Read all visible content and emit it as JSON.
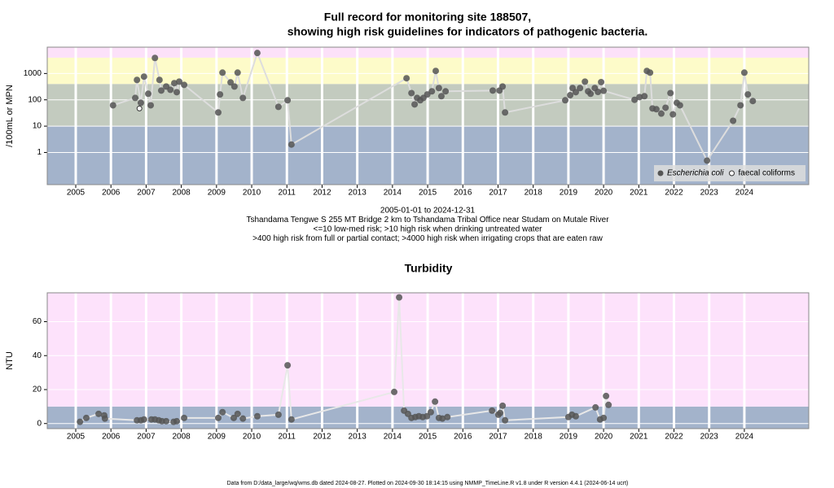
{
  "chart_data": [
    {
      "type": "scatter",
      "title": "Full record for monitoring site 188507,",
      "subtitle": "showing high risk guidelines for indicators of pathogenic bacteria.",
      "y_label": "/100mL or MPN",
      "log_y": true,
      "xlim": [
        2004.19,
        2025.83
      ],
      "xticks": [
        2005,
        2006,
        2007,
        2008,
        2009,
        2010,
        2011,
        2012,
        2013,
        2014,
        2015,
        2016,
        2017,
        2018,
        2019,
        2020,
        2021,
        2022,
        2023,
        2024
      ],
      "ylim": [
        0.06,
        10000
      ],
      "yticks": [
        1,
        10,
        100,
        1000
      ],
      "grid": true,
      "legend": "lower right",
      "line_color": "#dddddd",
      "bands": [
        {
          "from": 0.06,
          "to": 10,
          "color": "#a3b3cb"
        },
        {
          "from": 10,
          "to": 400,
          "color": "#c3cbbf"
        },
        {
          "from": 400,
          "to": 4000,
          "color": "#fdfbc9"
        },
        {
          "from": 4000,
          "to": 10000,
          "color": "#fce1f9"
        }
      ],
      "series": [
        {
          "name": "Escherichia coli",
          "color": "#555555",
          "connect": true,
          "x": [
            2006.06,
            2006.69,
            2006.74,
            2006.85,
            2006.94,
            2007.06,
            2007.13,
            2007.25,
            2007.38,
            2007.43,
            2007.57,
            2007.69,
            2007.8,
            2007.87,
            2007.94,
            2008.08,
            2009.05,
            2009.1,
            2009.17,
            2009.4,
            2009.51,
            2009.6,
            2009.75,
            2010.16,
            2010.76,
            2011.02,
            2011.13,
            2014.4,
            2014.54,
            2014.63,
            2014.7,
            2014.79,
            2014.88,
            2014.99,
            2015.12,
            2015.23,
            2015.32,
            2015.39,
            2015.51,
            2016.85,
            2017.04,
            2017.13,
            2017.2,
            2018.91,
            2019.05,
            2019.12,
            2019.21,
            2019.33,
            2019.47,
            2019.56,
            2019.63,
            2019.75,
            2019.84,
            2019.93,
            2020.0,
            2020.88,
            2021.02,
            2021.16,
            2021.23,
            2021.32,
            2021.39,
            2021.5,
            2021.64,
            2021.76,
            2021.9,
            2021.97,
            2022.08,
            2022.17,
            2022.94,
            2023.68,
            2023.89,
            2024.0,
            2024.1,
            2024.24
          ],
          "values": [
            62,
            118,
            570,
            77,
            760,
            170,
            62,
            3900,
            570,
            225,
            320,
            240,
            430,
            195,
            490,
            370,
            33,
            160,
            1080,
            460,
            320,
            1080,
            118,
            6000,
            54,
            96,
            2.0,
            660,
            180,
            67,
            118,
            96,
            118,
            160,
            210,
            1250,
            280,
            137,
            210,
            225,
            225,
            320,
            33,
            96,
            150,
            280,
            195,
            280,
            490,
            210,
            170,
            280,
            200,
            470,
            220,
            100,
            127,
            137,
            1250,
            1080,
            47,
            44,
            30,
            50,
            180,
            28,
            77,
            62,
            0.49,
            16,
            62,
            1080,
            160,
            90
          ]
        },
        {
          "name": "faecal coliforms",
          "color": "#ffffff",
          "connect": false,
          "x": [
            2006.81
          ],
          "values": [
            47
          ]
        }
      ],
      "notes": [
        "2005-01-01 to 2024-12-31",
        "Tshandama Tengwe S 255 MT Bridge 2 km to Tshandama Tribal Office near Studam on Mutale River",
        "<=10 low-med risk; >10 high risk when drinking untreated water",
        ">400 high risk from full or partial contact; >4000 high risk when irrigating crops that are eaten raw"
      ]
    },
    {
      "type": "scatter",
      "title": "Turbidity",
      "y_label": "NTU",
      "log_y": false,
      "xlim": [
        2004.19,
        2025.83
      ],
      "xticks": [
        2005,
        2006,
        2007,
        2008,
        2009,
        2010,
        2011,
        2012,
        2013,
        2014,
        2015,
        2016,
        2017,
        2018,
        2019,
        2020,
        2021,
        2022,
        2023,
        2024
      ],
      "ylim": [
        -3,
        77
      ],
      "yticks": [
        0,
        20,
        40,
        60
      ],
      "grid": true,
      "line_color": "#e8e8e8",
      "bands": [
        {
          "from": -3,
          "to": 10,
          "color": "#a3b3cb"
        },
        {
          "from": 10,
          "to": 77,
          "color": "#fde2fb"
        }
      ],
      "series": [
        {
          "color": "#555555",
          "connect": true,
          "x": [
            2005.12,
            2005.3,
            2005.65,
            2005.81,
            2005.83,
            2006.74,
            2006.85,
            2006.94,
            2007.15,
            2007.25,
            2007.36,
            2007.45,
            2007.57,
            2007.78,
            2007.87,
            2008.08,
            2009.05,
            2009.17,
            2009.49,
            2009.6,
            2009.75,
            2010.16,
            2010.76,
            2011.02,
            2011.13,
            2014.05,
            2014.19,
            2014.33,
            2014.44,
            2014.54,
            2014.65,
            2014.75,
            2014.86,
            2014.98,
            2015.09,
            2015.21,
            2015.32,
            2015.42,
            2015.56,
            2016.83,
            2017.01,
            2017.06,
            2017.13,
            2017.2,
            2019.0,
            2019.1,
            2019.21,
            2019.77,
            2019.9,
            2020.0,
            2020.07,
            2020.14
          ],
          "values": [
            1,
            3.3,
            5.7,
            4.8,
            2.9,
            1.9,
            1.9,
            2.4,
            2.4,
            2.4,
            1.9,
            1.4,
            1.4,
            1,
            1.4,
            3.3,
            3.3,
            6.7,
            3.3,
            5.7,
            2.9,
            4.3,
            5.2,
            34.3,
            2.4,
            18.6,
            74.3,
            7.6,
            5.7,
            3.3,
            3.8,
            4.3,
            3.8,
            4.3,
            6.7,
            12.9,
            3.3,
            2.9,
            3.8,
            7.6,
            5.2,
            6.2,
            10.5,
            1.9,
            3.8,
            5.2,
            4.3,
            9.5,
            2.4,
            3.3,
            16.2,
            11
          ]
        }
      ]
    }
  ],
  "footer": "Data from D:/data_large/wq/wms.db dated 2024-08-27. Plotted on 2024-09-30 18:14:15 using NMMP_TimeLine.R v1.8 under R version 4.4.1 (2024-06-14 ucrt)"
}
